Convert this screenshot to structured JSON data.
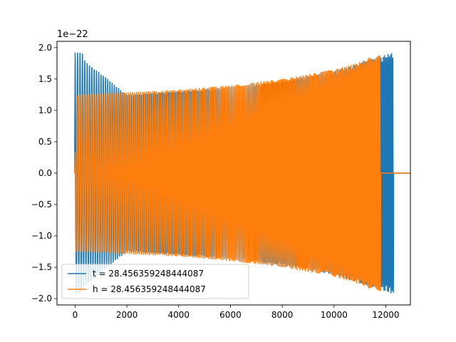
{
  "chart_data": {
    "type": "line",
    "title": "",
    "xlabel": "",
    "ylabel": "",
    "offset_text": "1e−22",
    "xlim": [
      -700,
      12950
    ],
    "ylim": [
      -2.1,
      2.1
    ],
    "x_ticks": [
      0,
      2000,
      4000,
      6000,
      8000,
      10000,
      12000
    ],
    "x_tick_labels": [
      "0",
      "2000",
      "4000",
      "6000",
      "8000",
      "10000",
      "12000"
    ],
    "y_ticks": [
      2.0,
      1.5,
      1.0,
      0.5,
      0.0,
      -0.5,
      -1.0,
      -1.5,
      -2.0
    ],
    "y_tick_labels": [
      "2.0",
      "1.5",
      "1.0",
      "0.5",
      "0.0",
      "−0.5",
      "−1.0",
      "−1.5",
      "−2.0"
    ],
    "grid": false,
    "legend_position": "lower-left",
    "series": [
      {
        "name": "t = 28.456359248444087",
        "color": "#1f77b4",
        "x_start": 0,
        "x_end": 12300,
        "x_samples": [
          0,
          2000,
          4000,
          6000,
          8000,
          10000,
          11000,
          11800,
          12300
        ],
        "envelope": [
          1.92,
          1.25,
          1.3,
          1.37,
          1.46,
          1.62,
          1.75,
          1.86,
          1.93
        ],
        "y_zero_after_x": 12300
      },
      {
        "name": "h = 28.456359248444087",
        "color": "#ff7f0e",
        "x_start": 0,
        "x_end": 11800,
        "x_samples": [
          0,
          2000,
          4000,
          6000,
          8000,
          10000,
          11000,
          11800
        ],
        "envelope": [
          1.25,
          1.29,
          1.33,
          1.4,
          1.5,
          1.65,
          1.77,
          1.92
        ],
        "y_zero_after_x": 11800
      }
    ]
  }
}
